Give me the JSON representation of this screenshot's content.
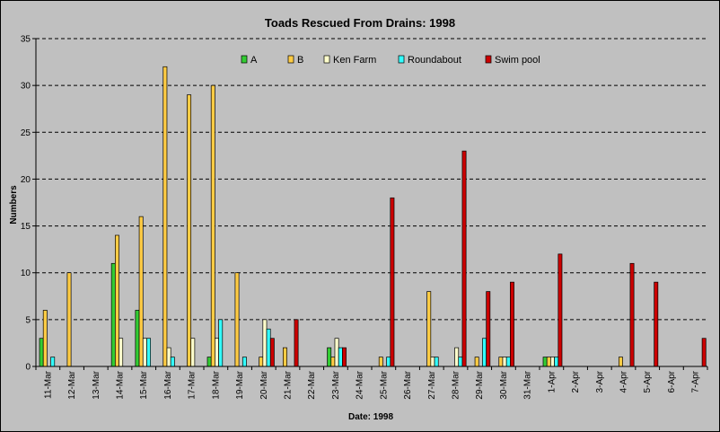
{
  "chart_data": {
    "type": "bar",
    "title": "Toads Rescued From Drains: 1998",
    "xlabel": "Date: 1998",
    "ylabel": "Numbers",
    "ylim": [
      0,
      35
    ],
    "yticks": [
      0,
      5,
      10,
      15,
      20,
      25,
      30,
      35
    ],
    "grid": "horizontal dashed",
    "legend_position": "top",
    "categories": [
      "11-Mar",
      "12-Mar",
      "13-Mar",
      "14-Mar",
      "15-Mar",
      "16-Mar",
      "17-Mar",
      "18-Mar",
      "19-Mar",
      "20-Mar",
      "21-Mar",
      "22-Mar",
      "23-Mar",
      "24-Mar",
      "25-Mar",
      "26-Mar",
      "27-Mar",
      "28-Mar",
      "29-Mar",
      "30-Mar",
      "31-Mar",
      "1-Apr",
      "2-Apr",
      "3-Apr",
      "4-Apr",
      "5-Apr",
      "6-Apr",
      "7-Apr"
    ],
    "series": [
      {
        "name": "A",
        "color": "#33cc33",
        "values": [
          3,
          0,
          0,
          11,
          6,
          0,
          0,
          1,
          0,
          0,
          0,
          0,
          2,
          0,
          0,
          0,
          0,
          0,
          0,
          0,
          0,
          1,
          0,
          0,
          0,
          0,
          0,
          0
        ]
      },
      {
        "name": "B",
        "color": "#ffcc44",
        "values": [
          6,
          10,
          0,
          14,
          16,
          32,
          29,
          30,
          10,
          1,
          2,
          0,
          1,
          0,
          1,
          0,
          8,
          0,
          1,
          1,
          0,
          1,
          0,
          0,
          1,
          0,
          0,
          0
        ]
      },
      {
        "name": "Ken Farm",
        "color": "#ffffcc",
        "values": [
          0,
          0,
          0,
          3,
          3,
          2,
          3,
          3,
          0,
          5,
          0,
          0,
          3,
          0,
          0,
          0,
          1,
          2,
          0,
          1,
          0,
          1,
          0,
          0,
          0,
          0,
          0,
          0
        ]
      },
      {
        "name": "Roundabout",
        "color": "#33ffff",
        "values": [
          1,
          0,
          0,
          0,
          3,
          1,
          0,
          5,
          1,
          4,
          0,
          0,
          2,
          0,
          1,
          0,
          1,
          1,
          3,
          1,
          0,
          1,
          0,
          0,
          0,
          0,
          0,
          0
        ]
      },
      {
        "name": "Swim pool",
        "color": "#cc0000",
        "values": [
          0,
          0,
          0,
          0,
          0,
          0,
          0,
          0,
          0,
          3,
          5,
          0,
          2,
          0,
          18,
          0,
          0,
          23,
          8,
          9,
          0,
          12,
          0,
          0,
          11,
          9,
          0,
          3
        ]
      }
    ]
  }
}
